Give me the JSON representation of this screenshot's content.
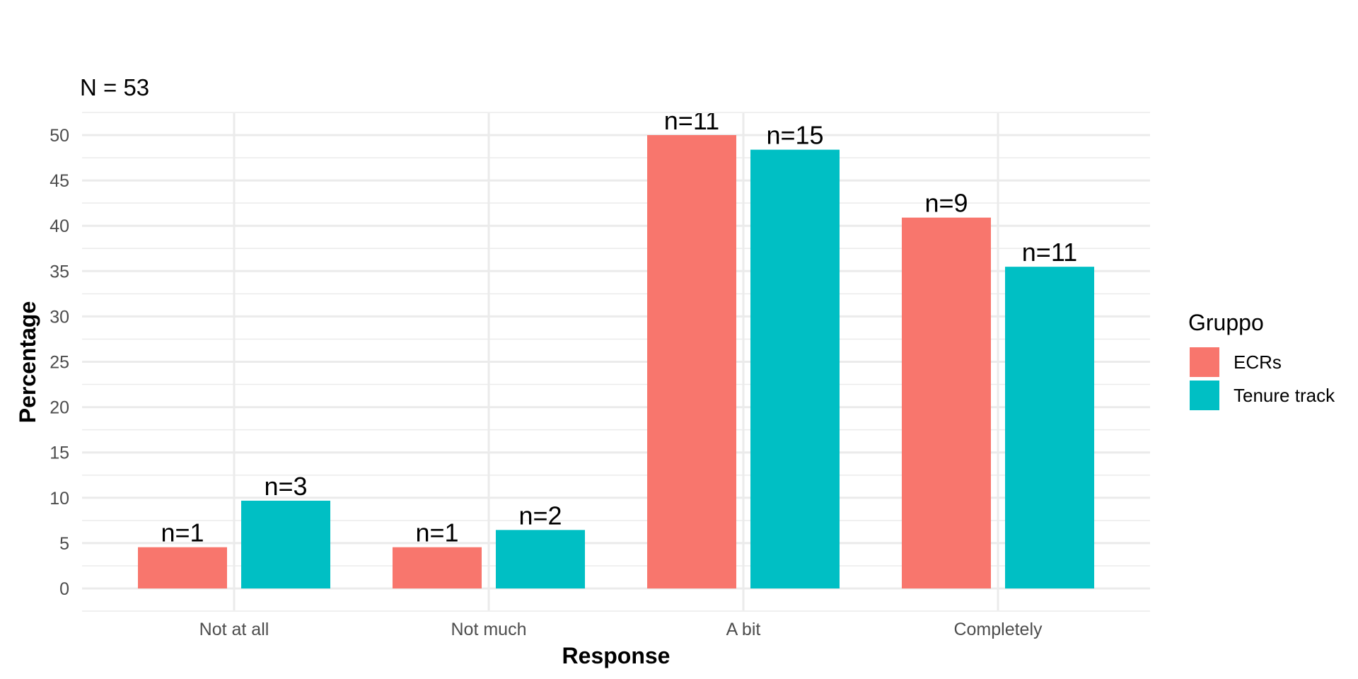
{
  "chart_data": {
    "type": "bar",
    "subtitle": "N = 53",
    "xlabel": "Response",
    "ylabel": "Percentage",
    "categories": [
      "Not at all",
      "Not much",
      "A bit",
      "Completely"
    ],
    "series": [
      {
        "name": "ECRs",
        "color": "#F8766D",
        "values": [
          4.55,
          4.55,
          50.0,
          40.9
        ],
        "labels": [
          "n=1",
          "n=1",
          "n=11",
          "n=9"
        ]
      },
      {
        "name": "Tenure track",
        "color": "#00BFC4",
        "values": [
          9.68,
          6.45,
          48.39,
          35.48
        ],
        "labels": [
          "n=3",
          "n=2",
          "n=15",
          "n=11"
        ]
      }
    ],
    "y_ticks": [
      0,
      5,
      10,
      15,
      20,
      25,
      30,
      35,
      40,
      45,
      50
    ],
    "ylim": [
      -2.4,
      52.5
    ],
    "grid": true,
    "legend": {
      "title": "Gruppo",
      "placement": "right"
    }
  }
}
